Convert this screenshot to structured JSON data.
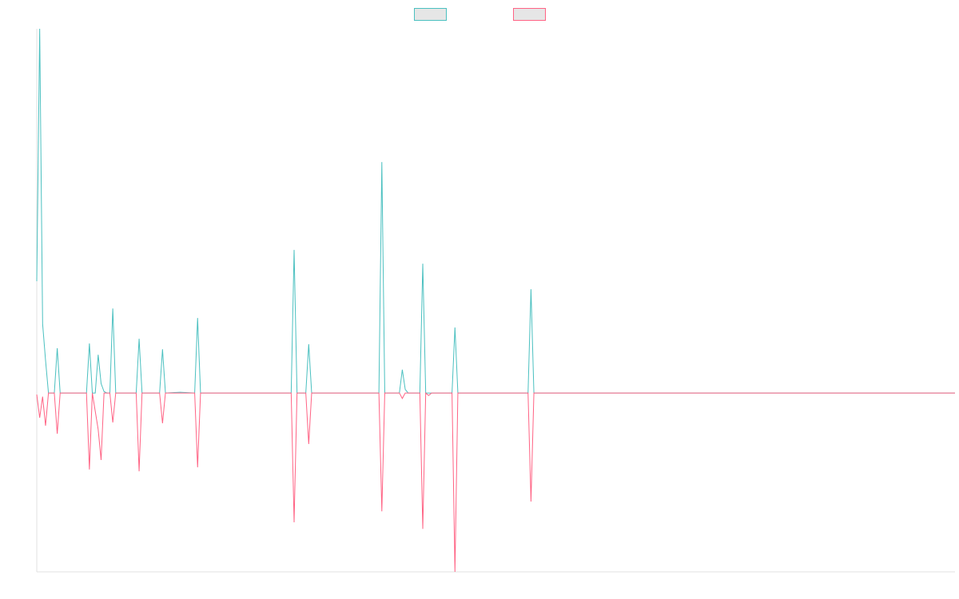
{
  "chart_data": {
    "type": "line",
    "legend": "top",
    "grid": false,
    "x": [
      0,
      1,
      2,
      3,
      4,
      5,
      6,
      7,
      8,
      17,
      18,
      19,
      20,
      21,
      22,
      23,
      24,
      25,
      26,
      27,
      34,
      35,
      36,
      42,
      43,
      44,
      49,
      54,
      55,
      56,
      87,
      88,
      89,
      92,
      93,
      94,
      117,
      118,
      119,
      124,
      125,
      126,
      127,
      131,
      132,
      133,
      134,
      135,
      142,
      143,
      144,
      168,
      169,
      170,
      314
    ],
    "xlim": [
      0,
      314
    ],
    "ylim": [
      -49.1,
      100
    ],
    "series": [
      {
        "color": "#4bc0c0",
        "values": [
          30.7,
          100,
          19,
          9,
          0,
          0,
          0,
          12.3,
          0,
          0,
          13.6,
          0,
          0,
          10.5,
          2.6,
          0.4,
          0,
          0,
          23.2,
          0,
          0,
          14.9,
          0,
          0,
          12,
          0,
          0.2,
          0,
          20.6,
          0,
          0,
          39.3,
          0,
          0,
          13.4,
          0,
          0,
          63.4,
          0,
          0,
          6.4,
          1,
          0,
          0,
          35.5,
          0,
          0,
          0,
          0,
          18,
          0,
          0,
          28.5,
          0,
          0
        ]
      },
      {
        "color": "#ff6384",
        "values": [
          -0.4,
          -6.8,
          -1,
          -9,
          0,
          0,
          0,
          -11.2,
          0,
          0,
          -21,
          0,
          -5,
          -10,
          -18.4,
          0,
          0,
          0,
          -8.1,
          0,
          0,
          -21.5,
          0,
          0,
          -8.3,
          0,
          0,
          0,
          -20.4,
          0,
          0,
          -35.5,
          0,
          0,
          -14,
          0,
          0,
          -32.5,
          0,
          0,
          -1.5,
          0,
          0,
          0,
          -37.3,
          0,
          -0.7,
          0,
          0,
          -49.1,
          0,
          0,
          -29.8,
          0,
          0
        ]
      }
    ]
  }
}
